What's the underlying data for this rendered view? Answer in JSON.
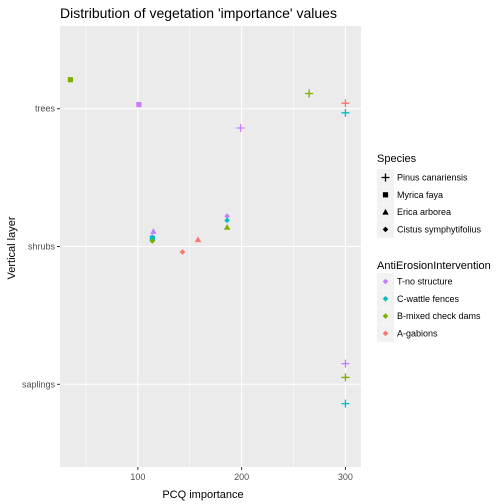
{
  "chart_data": {
    "type": "scatter",
    "title": "Distribution of vegetation 'importance' values",
    "xlabel": "PCQ importance",
    "ylabel": "Vertical layer",
    "x_ticks": [
      100,
      200,
      300
    ],
    "xlim": [
      25,
      315
    ],
    "y_categories": [
      "saplings",
      "shrubs",
      "trees"
    ],
    "grid": true,
    "legend_position": "right",
    "legends": {
      "shape": {
        "title": "Species",
        "items": [
          {
            "label": "Pinus canariensis",
            "shape": "plus"
          },
          {
            "label": "Myrica faya",
            "shape": "square"
          },
          {
            "label": "Erica arborea",
            "shape": "triangle"
          },
          {
            "label": "Cistus  symphytifolius",
            "shape": "diamond"
          }
        ]
      },
      "color": {
        "title": "AntiErosionIntervention",
        "items": [
          {
            "label": "T-no structure",
            "color": "#C77CFF"
          },
          {
            "label": "C-wattle fences",
            "color": "#00BFC4"
          },
          {
            "label": "B-mixed check dams",
            "color": "#7CAE00"
          },
          {
            "label": "A-gabions",
            "color": "#F8766D"
          }
        ]
      }
    },
    "points": [
      {
        "layer": "trees",
        "offset": 0.21,
        "x": 35,
        "species": "Myrica faya",
        "intervention": "B-mixed check dams"
      },
      {
        "layer": "trees",
        "offset": 0.03,
        "x": 101,
        "species": "Myrica faya",
        "intervention": "T-no structure"
      },
      {
        "layer": "trees",
        "offset": 0.11,
        "x": 265,
        "species": "Pinus canariensis",
        "intervention": "B-mixed check dams"
      },
      {
        "layer": "trees",
        "offset": 0.04,
        "x": 300,
        "species": "Pinus canariensis",
        "intervention": "A-gabions"
      },
      {
        "layer": "trees",
        "offset": -0.03,
        "x": 300,
        "species": "Pinus canariensis",
        "intervention": "C-wattle fences"
      },
      {
        "layer": "trees",
        "offset": -0.14,
        "x": 199,
        "species": "Pinus canariensis",
        "intervention": "T-no structure"
      },
      {
        "layer": "shrubs",
        "offset": 0.11,
        "x": 115,
        "species": "Erica arborea",
        "intervention": "T-no structure"
      },
      {
        "layer": "shrubs",
        "offset": 0.07,
        "x": 114,
        "species": "Cistus  symphytifolius",
        "intervention": "T-no structure"
      },
      {
        "layer": "shrubs",
        "offset": 0.06,
        "x": 114,
        "species": "Myrica faya",
        "intervention": "C-wattle fences"
      },
      {
        "layer": "shrubs",
        "offset": 0.04,
        "x": 114,
        "species": "Cistus  symphytifolius",
        "intervention": "B-mixed check dams"
      },
      {
        "layer": "shrubs",
        "offset": -0.04,
        "x": 143,
        "species": "Cistus  symphytifolius",
        "intervention": "A-gabions"
      },
      {
        "layer": "shrubs",
        "offset": 0.05,
        "x": 158,
        "species": "Erica arborea",
        "intervention": "A-gabions"
      },
      {
        "layer": "shrubs",
        "offset": 0.22,
        "x": 186,
        "species": "Cistus  symphytifolius",
        "intervention": "T-no structure"
      },
      {
        "layer": "shrubs",
        "offset": 0.19,
        "x": 186,
        "species": "Cistus  symphytifolius",
        "intervention": "C-wattle fences"
      },
      {
        "layer": "shrubs",
        "offset": 0.14,
        "x": 186,
        "species": "Erica arborea",
        "intervention": "B-mixed check dams"
      },
      {
        "layer": "saplings",
        "offset": 0.15,
        "x": 300,
        "species": "Pinus canariensis",
        "intervention": "T-no structure"
      },
      {
        "layer": "saplings",
        "offset": 0.05,
        "x": 300,
        "species": "Pinus canariensis",
        "intervention": "B-mixed check dams"
      },
      {
        "layer": "saplings",
        "offset": -0.14,
        "x": 300,
        "species": "Pinus canariensis",
        "intervention": "C-wattle fences"
      }
    ]
  }
}
